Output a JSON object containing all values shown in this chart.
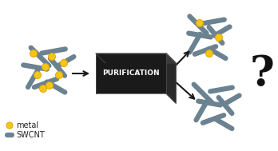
{
  "background_color": "#ffffff",
  "swcnt_color": "#6b8291",
  "metal_color": "#f5c518",
  "metal_edge_color": "#e0a800",
  "box_face_color": "#1a1a1a",
  "box_top_color": "#3a3a3a",
  "box_side_color": "#2a2a2a",
  "box_text": "PURIFICATION",
  "box_text_color": "#ffffff",
  "arrow_color": "#1a1a1a",
  "question_color": "#111111",
  "legend_metal_label": "metal",
  "legend_swcnt_label": "SWCNT",
  "legend_text_color": "#222222"
}
